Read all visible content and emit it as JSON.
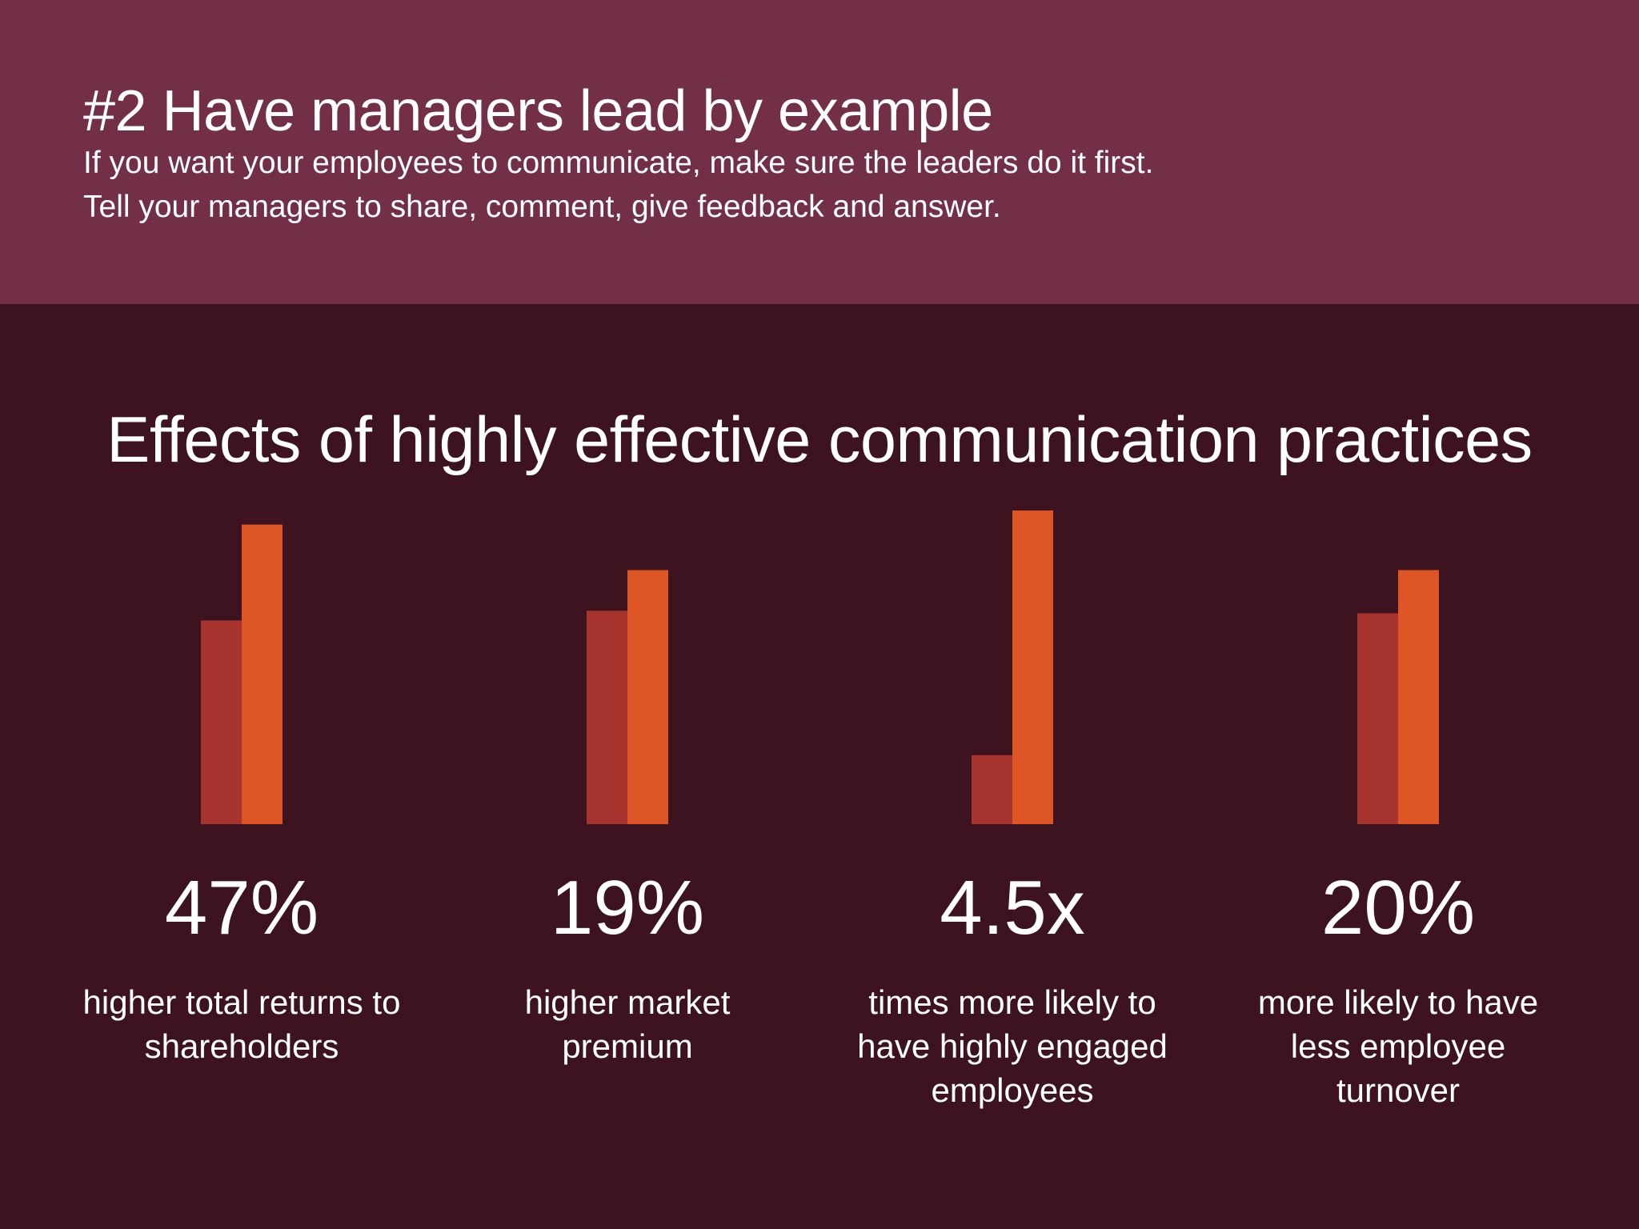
{
  "header": {
    "title": "#2 Have managers lead by example",
    "subtitle_line1": "If you want your employees to communicate, make sure the leaders do it first.",
    "subtitle_line2": "Tell your managers to share, comment, give feedback and answer."
  },
  "chart_data": {
    "type": "bar",
    "title": "Effects of highly effective communication practices",
    "series_colors": [
      "#a8342f",
      "#de5626"
    ],
    "stats": [
      {
        "value_text": "47%",
        "label": "higher total returns to shareholders",
        "pair": [
          0.68,
          1.0
        ]
      },
      {
        "value_text": "19%",
        "label": "higher market premium",
        "pair": [
          0.84,
          1.0
        ]
      },
      {
        "value_text": "4.5x",
        "label": "times more likely to have highly engaged employees",
        "pair": [
          0.22,
          1.0
        ]
      },
      {
        "value_text": "20%",
        "label": "more likely to have less employee turnover",
        "pair": [
          0.83,
          1.0
        ]
      }
    ]
  },
  "colors": {
    "header_bg": "#722f47",
    "body_bg": "#3d1320",
    "bar_dark": "#a8342f",
    "bar_light": "#de5626"
  }
}
